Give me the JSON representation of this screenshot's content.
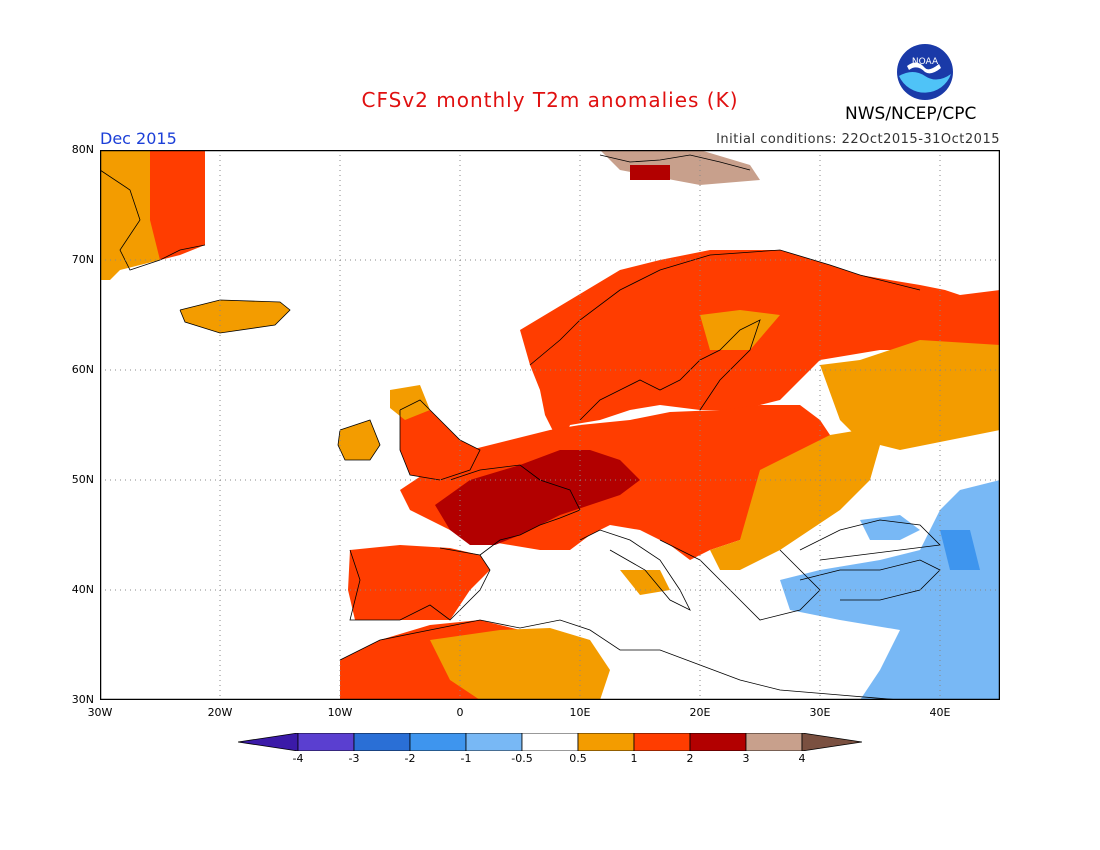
{
  "title": "CFSv2 monthly T2m anomalies (K)",
  "month": "Dec 2015",
  "initial_conditions": "Initial conditions: 22Oct2015-31Oct2015",
  "agency": "NWS/NCEP/CPC",
  "logo_text": "NOAA",
  "lat_labels": [
    "80N",
    "70N",
    "60N",
    "50N",
    "40N",
    "30N"
  ],
  "lon_labels": [
    "30W",
    "20W",
    "10W",
    "0",
    "10E",
    "20E",
    "30E",
    "40E"
  ],
  "colorbar": {
    "labels": [
      "-4",
      "-3",
      "-2",
      "-1",
      "-0.5",
      "0.5",
      "1",
      "2",
      "3",
      "4"
    ],
    "colors": [
      "#3b1aa8",
      "#5a3fd0",
      "#2a6fd6",
      "#3e95ee",
      "#78b8f5",
      "#ffffff",
      "#f39c00",
      "#ff3d00",
      "#b20000",
      "#c8a08c",
      "#7a5040"
    ]
  }
}
